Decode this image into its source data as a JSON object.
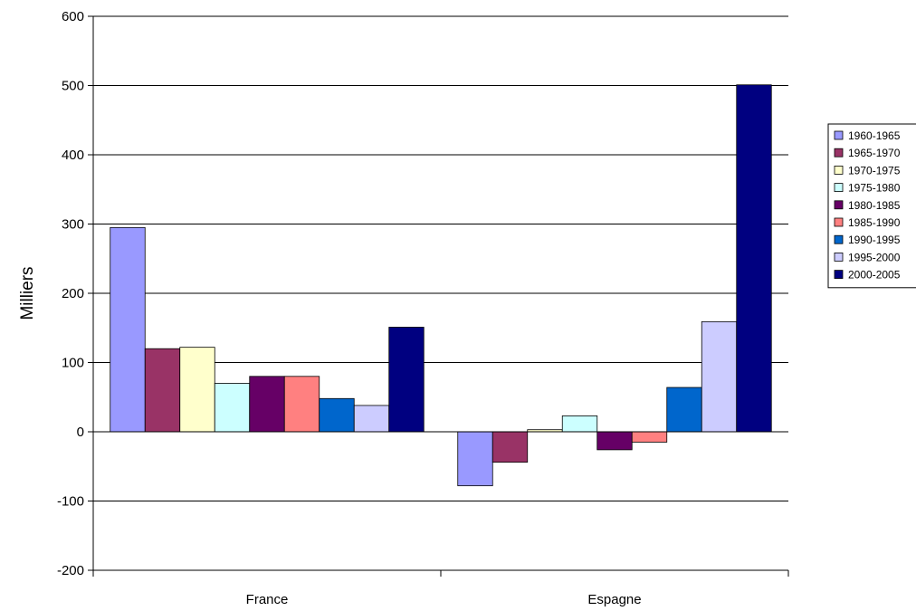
{
  "chart_data": {
    "type": "bar",
    "title": "",
    "xlabel": "",
    "ylabel": "Milliers",
    "ylim": [
      -200,
      600
    ],
    "yticks": [
      -200,
      -100,
      0,
      100,
      200,
      300,
      400,
      500,
      600
    ],
    "grid": true,
    "legend_position": "right",
    "categories": [
      "France",
      "Espagne"
    ],
    "series": [
      {
        "name": "1960-1965",
        "color": "#9999ff",
        "values": [
          295,
          -78
        ]
      },
      {
        "name": "1965-1970",
        "color": "#993366",
        "values": [
          120,
          -44
        ]
      },
      {
        "name": "1970-1975",
        "color": "#ffffcc",
        "values": [
          122,
          3
        ]
      },
      {
        "name": "1975-1980",
        "color": "#ccffff",
        "values": [
          70,
          23
        ]
      },
      {
        "name": "1980-1985",
        "color": "#660066",
        "values": [
          80,
          -26
        ]
      },
      {
        "name": "1985-1990",
        "color": "#ff8080",
        "values": [
          80,
          -15
        ]
      },
      {
        "name": "1990-1995",
        "color": "#0066cc",
        "values": [
          48,
          64
        ]
      },
      {
        "name": "1995-2000",
        "color": "#ccccff",
        "values": [
          38,
          159
        ]
      },
      {
        "name": "2000-2005",
        "color": "#000080",
        "values": [
          151,
          501
        ]
      }
    ]
  }
}
